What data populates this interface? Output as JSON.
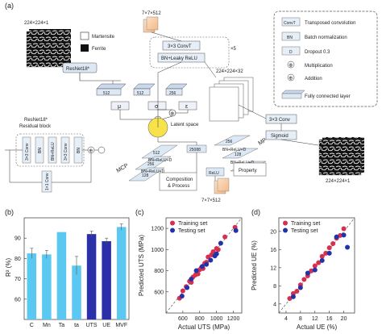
{
  "panel_a": {
    "tag": "(a)",
    "input_size": "224×224×1",
    "martensite": "Martensite",
    "ferrite": "Ferrite",
    "resnet_box": "ResNet18*",
    "residual_title_1": "ResNet18*",
    "residual_title_2": "Residual block",
    "res_conv1": "3×3 Conv",
    "res_bn1": "BN",
    "res_bnrelu": "BN+ReLU",
    "res_conv2": "3×3 Conv",
    "res_bn2": "BN",
    "res_shortcut": "1×1 Conv",
    "enc_512": "512",
    "enc_256a": "512",
    "enc_256b": "256",
    "mu": "μ",
    "sigma": "σ",
    "eps": "ε",
    "latent": "Latent space",
    "dec_top_size": "7×7×512",
    "dec_convT": "3×3 ConvT",
    "dec_bnrelu": "BN+Leaky ReLU",
    "dec_x5": "×5",
    "dec_size2": "224×224×32",
    "dec_conv": "3×3 Conv",
    "dec_sigmoid": "Sigmoid",
    "output_size": "224×224×1",
    "mp_label": "MP",
    "mcp_label": "MCP",
    "mcp_units": [
      "512",
      "256",
      "128"
    ],
    "mcp_blocks": [
      "BN+ReLU+D",
      "BN+ReLU+D"
    ],
    "mp_units": [
      "256",
      "128",
      "64"
    ],
    "mp_blocks": [
      "BN+ReLU+D",
      "BN+ReLU+D"
    ],
    "mid_unit": "25088",
    "relu": "ReLU",
    "composition_1": "Composition",
    "composition_2": "& Process",
    "property": "Property",
    "bottom_size": "7×7×512",
    "legend": [
      {
        "key": "ConvT",
        "label": "Transposed convolution"
      },
      {
        "key": "BN",
        "label": "Batch normalization"
      },
      {
        "key": "D",
        "label": "Dropout 0.3"
      },
      {
        "key": "⊗",
        "label": "Multiplication"
      },
      {
        "key": "⊕",
        "label": "Addition"
      },
      {
        "key": "",
        "label": "Fully connected layer"
      }
    ]
  },
  "panel_b": {
    "tag": "(b)",
    "colors": {
      "light": "#5ac8f0",
      "dark": "#2b2fa8"
    },
    "chart_data": {
      "type": "bar",
      "categories": [
        "C",
        "Mn",
        "Ta",
        "ta",
        "UTS",
        "UE",
        "MVF"
      ],
      "values": [
        82.5,
        82,
        93,
        76.5,
        92,
        88.5,
        95.5
      ],
      "errors": [
        2.5,
        2,
        0,
        4.5,
        1.5,
        1.5,
        1.5
      ],
      "highlight": [
        false,
        false,
        false,
        false,
        true,
        true,
        false
      ],
      "ylabel": "R² (%)",
      "ylim": [
        50,
        100
      ],
      "yticks": [
        "60",
        "70",
        "80",
        "90"
      ]
    }
  },
  "panel_c": {
    "tag": "(c)",
    "chart_data": {
      "type": "scatter",
      "xlabel": "Actual UTS (MPa)",
      "ylabel": "Predicted UTS (MPa)",
      "xlim": [
        400,
        1300
      ],
      "ylim": [
        400,
        1300
      ],
      "xticks": [
        "600",
        "800",
        "1000",
        "1200"
      ],
      "yticks": [
        "600",
        "800",
        "1000",
        "1200"
      ],
      "legend": [
        "Training set",
        "Testing set"
      ],
      "series": [
        {
          "name": "Training set",
          "color": "#d6304f",
          "points": [
            [
              560,
              540
            ],
            [
              600,
              610
            ],
            [
              640,
              650
            ],
            [
              680,
              700
            ],
            [
              700,
              690
            ],
            [
              720,
              740
            ],
            [
              750,
              760
            ],
            [
              780,
              770
            ],
            [
              800,
              810
            ],
            [
              820,
              830
            ],
            [
              840,
              820
            ],
            [
              860,
              870
            ],
            [
              880,
              880
            ],
            [
              900,
              930
            ],
            [
              940,
              950
            ],
            [
              960,
              980
            ],
            [
              1000,
              1010
            ],
            [
              1020,
              1000
            ],
            [
              1100,
              1120
            ],
            [
              1220,
              1210
            ]
          ]
        },
        {
          "name": "Testing set",
          "color": "#2233aa",
          "points": [
            [
              590,
              560
            ],
            [
              650,
              640
            ],
            [
              700,
              720
            ],
            [
              760,
              800
            ],
            [
              830,
              840
            ],
            [
              880,
              860
            ],
            [
              930,
              900
            ],
            [
              980,
              940
            ],
            [
              1000,
              960
            ],
            [
              1050,
              1060
            ],
            [
              1230,
              1180
            ]
          ]
        }
      ]
    }
  },
  "panel_d": {
    "tag": "(d)",
    "chart_data": {
      "type": "scatter",
      "xlabel": "Actual UE (%)",
      "ylabel": "Predicted UE (%)",
      "xlim": [
        2,
        23
      ],
      "ylim": [
        2,
        23
      ],
      "xticks": [
        "4",
        "8",
        "12",
        "16",
        "20"
      ],
      "yticks": [
        "4",
        "8",
        "12",
        "16",
        "20"
      ],
      "legend": [
        "Training set",
        "Testing set"
      ],
      "series": [
        {
          "name": "Training set",
          "color": "#d6304f",
          "points": [
            [
              5,
              5.2
            ],
            [
              6,
              6.3
            ],
            [
              7,
              6.8
            ],
            [
              8,
              8.2
            ],
            [
              9,
              9.4
            ],
            [
              10,
              10.2
            ],
            [
              11,
              11.3
            ],
            [
              12,
              12.4
            ],
            [
              13,
              13.1
            ],
            [
              14,
              14.5
            ],
            [
              15,
              15.2
            ],
            [
              16,
              16.4
            ],
            [
              17,
              17.3
            ],
            [
              18,
              18.5
            ],
            [
              19,
              19.1
            ],
            [
              20,
              20.6
            ]
          ]
        },
        {
          "name": "Testing set",
          "color": "#2233aa",
          "points": [
            [
              6,
              5.6
            ],
            [
              8,
              7.6
            ],
            [
              10,
              10.8
            ],
            [
              12,
              11.5
            ],
            [
              14,
              13.6
            ],
            [
              16,
              15.2
            ],
            [
              18,
              18.8
            ],
            [
              20,
              19.2
            ],
            [
              21,
              16.5
            ]
          ]
        }
      ]
    }
  }
}
